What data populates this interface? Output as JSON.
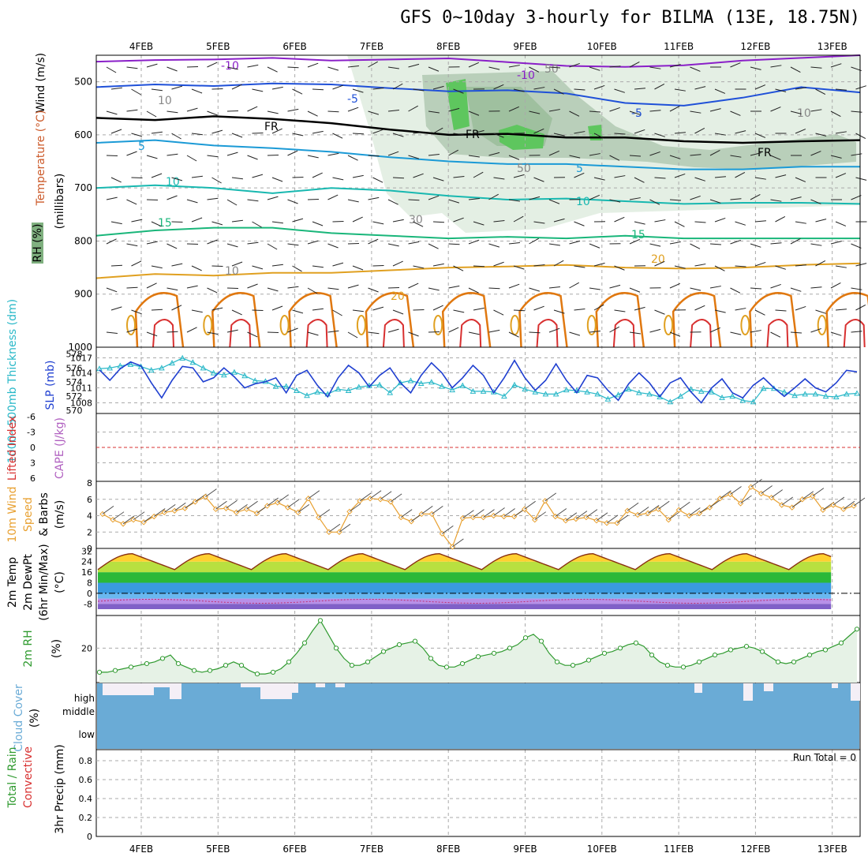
{
  "title": "GFS 0~10day 3-hourly for BILMA (13E, 18.75N)",
  "colors": {
    "grid": "#aaaaaa",
    "temp_m10": "#8a1fc8",
    "temp_m5": "#1f50d8",
    "temp_fr": "#000000",
    "temp_5": "#1b9ad6",
    "temp_10": "#18b8b0",
    "temp_15": "#19b67a",
    "temp_20": "#e0a020",
    "temp_25": "#e07810",
    "temp_30": "#d83030",
    "rh_light": "#e4efe4",
    "rh_mid": "#b9cfba",
    "rh_dark": "#7fb07f",
    "rh_green": "#5ec65e",
    "slp": "#1f3fd0",
    "thickness": "#29b8c8",
    "wind10": "#e8a030",
    "cloud": "#6aabd6",
    "rh2m": "#2f9a2f",
    "rh2m_fill": "#e6f2e6",
    "precip_conv": "#d83030"
  },
  "xaxis": {
    "days": [
      "4FEB",
      "5FEB",
      "6FEB",
      "7FEB",
      "8FEB",
      "9FEB",
      "10FEB",
      "11FEB",
      "12FEB",
      "13FEB"
    ]
  },
  "panels": {
    "upper": {
      "ylabel_wind": "Wind (m/s)",
      "ylabel_temp": "Temperature (°C)",
      "ylabel_rh": "RH (%)",
      "ylabel_units": "(millibars)",
      "yticks": [
        "500",
        "600",
        "700",
        "800",
        "900",
        "1000"
      ],
      "contour_labels": [
        "-10",
        "-10",
        "-5",
        "-5",
        "FR",
        "FR",
        "FR",
        "5",
        "5",
        "10",
        "10",
        "15",
        "15",
        "20",
        "20",
        "10",
        "10",
        "30",
        "50",
        "50",
        "10"
      ]
    },
    "slp": {
      "ylabel_thick": "1000~500mb Thickness (dm)",
      "ylabel_slp": "SLP (mb)",
      "thick_ticks": [
        "578",
        "576",
        "574",
        "572",
        "570"
      ],
      "slp_ticks": [
        "1017",
        "1014",
        "1011",
        "1008"
      ]
    },
    "cape": {
      "ylabel_li": "Lifted Index",
      "ylabel_cape": "CAPE (J/kg)",
      "yticks": [
        "-6",
        "-3",
        "0",
        "3",
        "6"
      ]
    },
    "wind10": {
      "ylabel1": "10m Wind",
      "ylabel2": "Speed",
      "ylabel3": "& Barbs",
      "units": "(m/s)",
      "yticks": [
        "8",
        "6",
        "4",
        "2",
        "0"
      ]
    },
    "temp2m": {
      "ylabel1": "2m Temp",
      "ylabel2": "2m DewPt",
      "ylabel3": "(6hr Min/Max)",
      "units": "(°C)",
      "yticks": [
        "32",
        "24",
        "16",
        "8",
        "0",
        "-8"
      ]
    },
    "rh2m": {
      "ylabel": "2m RH",
      "units": "(%)",
      "yticks": [
        "20"
      ]
    },
    "cloud": {
      "ylabel": "Cloud Cover",
      "units": "(%)",
      "levels": [
        "high",
        "middle",
        "low"
      ]
    },
    "precip": {
      "ylabel1": "Total / Rain",
      "ylabel2": "Convective",
      "ylabel3": "3hr Precip (mm)",
      "yticks": [
        "0.8",
        "0.6",
        "0.4",
        "0.2",
        "0"
      ],
      "run_total": "Run Total = 0"
    }
  },
  "chart_data": [
    {
      "type": "line",
      "name": "SLP",
      "x_unit": "3-hourly steps from 3FEB 12Z",
      "values": [
        1014.6,
        1012.5,
        1014.8,
        1016.2,
        1015.4,
        1012.0,
        1009.0,
        1012.5,
        1015.3,
        1015.0,
        1012.2,
        1013.0,
        1015.0,
        1013.2,
        1011.0,
        1011.8,
        1012.2,
        1013.0,
        1010.0,
        1013.5,
        1014.5,
        1011.5,
        1009.2,
        1013.0,
        1015.5,
        1014.0,
        1011.2,
        1013.5,
        1015.0,
        1012.0,
        1010.0,
        1013.5,
        1016.0,
        1014.0,
        1011.0,
        1013.0,
        1015.5,
        1013.5,
        1010.0,
        1013.0,
        1016.5,
        1013.0,
        1010.5,
        1012.5,
        1015.8,
        1012.5,
        1010.0,
        1013.5,
        1013.0,
        1010.5,
        1008.5,
        1011.8,
        1014.0,
        1012.0,
        1009.2,
        1012.0,
        1013.0,
        1010.2,
        1008.0,
        1011.0,
        1012.8,
        1010.0,
        1009.0,
        1011.5,
        1013.0,
        1011.0,
        1009.3,
        1011.0,
        1012.8,
        1011.0,
        1010.2,
        1012.0,
        1014.5,
        1014.2
      ],
      "ylim": [
        1006.5,
        1018.5
      ]
    },
    {
      "type": "line",
      "name": "1000~500mb Thickness",
      "values": [
        575.9,
        576.0,
        576.3,
        576.5,
        576.2,
        575.7,
        576.0,
        576.7,
        577.4,
        576.8,
        576.0,
        575.3,
        575.0,
        575.4,
        574.9,
        574.2,
        574.1,
        573.4,
        573.4,
        572.8,
        572.1,
        572.6,
        572.3,
        573.0,
        572.8,
        573.3,
        573.5,
        573.6,
        572.5,
        573.9,
        574.2,
        573.8,
        574.0,
        573.4,
        572.9,
        573.5,
        572.7,
        572.7,
        572.6,
        572.0,
        573.6,
        573.0,
        572.6,
        572.3,
        572.3,
        572.9,
        572.8,
        572.6,
        572.3,
        571.6,
        572.2,
        573.0,
        572.5,
        572.3,
        571.9,
        571.2,
        572.0,
        573.0,
        572.7,
        572.6,
        571.8,
        572.0,
        571.4,
        571.2,
        573.1,
        573.1,
        572.6,
        572.1,
        572.3,
        572.3,
        572.0,
        571.9,
        572.3,
        572.4
      ],
      "ylim": [
        570.0,
        578.5
      ]
    },
    {
      "type": "line",
      "name": "10m Wind Speed",
      "values": [
        4.2,
        3.5,
        3.0,
        3.5,
        3.2,
        3.9,
        4.4,
        4.6,
        4.9,
        5.7,
        6.3,
        4.8,
        4.9,
        4.4,
        4.8,
        4.3,
        5.2,
        5.6,
        5.0,
        4.4,
        6.1,
        3.8,
        2.0,
        2.0,
        4.5,
        5.8,
        6.1,
        6.0,
        5.7,
        3.8,
        3.3,
        4.2,
        4.2,
        1.8,
        0.2,
        3.7,
        3.8,
        3.8,
        4.0,
        3.9,
        3.9,
        4.8,
        3.5,
        5.8,
        3.9,
        3.4,
        3.6,
        3.8,
        3.4,
        3.1,
        3.1,
        4.6,
        4.1,
        4.3,
        4.8,
        3.5,
        4.7,
        4.0,
        4.3,
        5.0,
        6.1,
        6.6,
        5.5,
        7.5,
        6.7,
        6.2,
        5.3,
        5.0,
        6.0,
        6.4,
        4.7,
        5.3,
        4.8,
        5.2
      ],
      "ylim": [
        0,
        8
      ]
    },
    {
      "type": "line",
      "name": "2m RH",
      "values": [
        6,
        6,
        7,
        8,
        9,
        10,
        11,
        12,
        14,
        16,
        11,
        9,
        7,
        6,
        7,
        8,
        10,
        12,
        10,
        7,
        5,
        5,
        6,
        8,
        12,
        17,
        23,
        30,
        36,
        28,
        20,
        14,
        10,
        10,
        12,
        15,
        18,
        20,
        22,
        23,
        24,
        20,
        14,
        10,
        9,
        9,
        11,
        13,
        15,
        16,
        17,
        18,
        20,
        22,
        26,
        28,
        24,
        17,
        12,
        10,
        10,
        11,
        13,
        15,
        17,
        18,
        20,
        22,
        23,
        21,
        16,
        12,
        10,
        9,
        9,
        10,
        12,
        14,
        16,
        17,
        19,
        20,
        21,
        20,
        18,
        15,
        12,
        11,
        12,
        14,
        16,
        18,
        19,
        21,
        23,
        27,
        31
      ],
      "ylim": [
        0,
        38
      ]
    },
    {
      "type": "area",
      "name": "3hr Precip",
      "values": [
        0
      ],
      "ylim": [
        0,
        0.9
      ]
    }
  ]
}
